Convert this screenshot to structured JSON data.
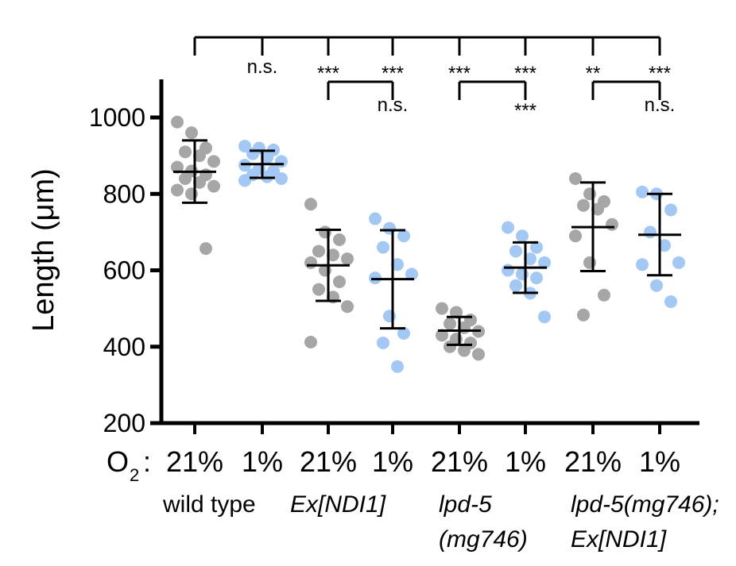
{
  "chart_data": {
    "type": "scatter",
    "ylabel": "Length (μm)",
    "ylim": [
      200,
      1100
    ],
    "yticks": [
      200,
      400,
      600,
      800,
      1000
    ],
    "x_axis_prefix": "O",
    "x_axis_prefix_sub": "2",
    "x_axis_prefix_suffix": ":",
    "groups": [
      {
        "genotype_lines": [
          "wild type"
        ],
        "italic": false
      },
      {
        "genotype_lines": [
          "Ex[NDI1]"
        ],
        "italic": true
      },
      {
        "genotype_lines": [
          "lpd-5",
          "(mg746)"
        ],
        "italic": true
      },
      {
        "genotype_lines": [
          "lpd-5(mg746);",
          "Ex[NDI1]"
        ],
        "italic": true
      }
    ],
    "colors": {
      "o2_21": "#a6a6a6",
      "o2_1": "#a4c8f4",
      "error_bar": "#000000"
    },
    "series": [
      {
        "group": 0,
        "condition": "21%",
        "color_key": "o2_21",
        "mean": 858,
        "sd_low": 777,
        "sd_high": 940,
        "points": [
          988,
          960,
          920,
          910,
          900,
          885,
          870,
          860,
          850,
          840,
          830,
          820,
          810,
          800,
          657
        ]
      },
      {
        "group": 0,
        "condition": "1%",
        "color_key": "o2_1",
        "mean": 878,
        "sd_low": 842,
        "sd_high": 913,
        "points": [
          925,
          920,
          915,
          905,
          895,
          885,
          875,
          865,
          860,
          850,
          845,
          840,
          835
        ]
      },
      {
        "group": 1,
        "condition": "21%",
        "color_key": "o2_21",
        "mean": 613,
        "sd_low": 520,
        "sd_high": 706,
        "points": [
          773,
          700,
          680,
          650,
          640,
          630,
          620,
          600,
          570,
          550,
          530,
          505,
          412
        ]
      },
      {
        "group": 1,
        "condition": "1%",
        "color_key": "o2_1",
        "mean": 577,
        "sd_low": 448,
        "sd_high": 705,
        "points": [
          735,
          710,
          690,
          660,
          615,
          590,
          580,
          480,
          435,
          410,
          348
        ]
      },
      {
        "group": 2,
        "condition": "21%",
        "color_key": "o2_21",
        "mean": 442,
        "sd_low": 405,
        "sd_high": 478,
        "points": [
          500,
          490,
          470,
          460,
          450,
          440,
          430,
          420,
          410,
          400,
          390,
          380
        ]
      },
      {
        "group": 2,
        "condition": "1%",
        "color_key": "o2_1",
        "mean": 607,
        "sd_low": 541,
        "sd_high": 673,
        "points": [
          712,
          690,
          660,
          650,
          630,
          620,
          600,
          590,
          580,
          560,
          540,
          478
        ]
      },
      {
        "group": 3,
        "condition": "21%",
        "color_key": "o2_21",
        "mean": 713,
        "sd_low": 598,
        "sd_high": 830,
        "points": [
          840,
          800,
          780,
          770,
          760,
          720,
          690,
          620,
          535,
          483
        ]
      },
      {
        "group": 3,
        "condition": "1%",
        "color_key": "o2_1",
        "mean": 693,
        "sd_low": 587,
        "sd_high": 800,
        "points": [
          805,
          800,
          758,
          700,
          665,
          620,
          615,
          560,
          518
        ]
      }
    ],
    "significance": {
      "top_bracket_labels": [
        "n.s.",
        "***",
        "***",
        "***",
        "***",
        "**",
        "***"
      ],
      "group_brackets": [
        {
          "group": 1,
          "label": "n.s."
        },
        {
          "group": 2,
          "label": "***"
        },
        {
          "group": 3,
          "label": "n.s."
        }
      ]
    }
  }
}
